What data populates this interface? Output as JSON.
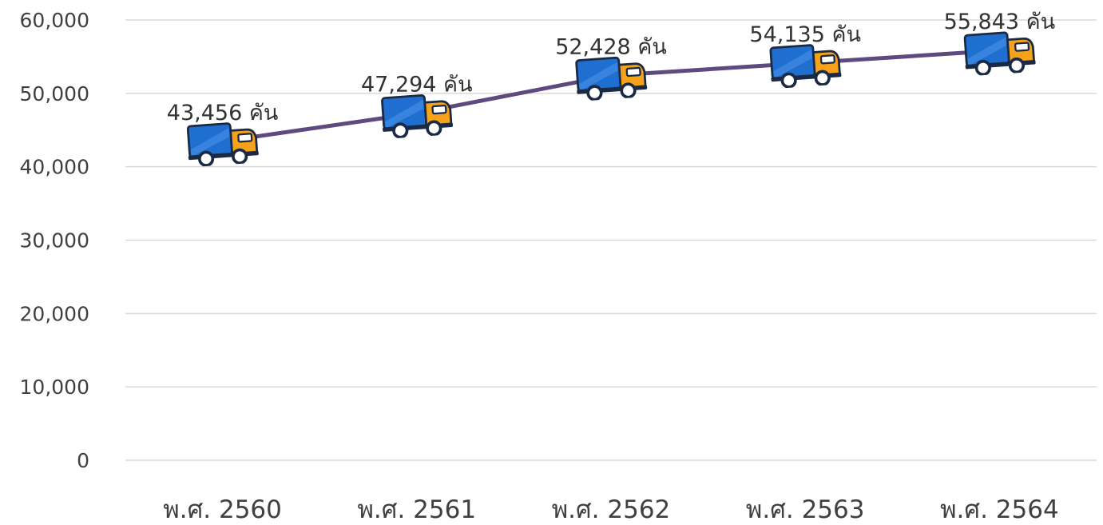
{
  "chart_data": {
    "type": "line",
    "title": "",
    "xlabel": "",
    "ylabel": "",
    "categories": [
      "พ.ศ. 2560",
      "พ.ศ. 2561",
      "พ.ศ. 2562",
      "พ.ศ. 2563",
      "พ.ศ. 2564"
    ],
    "series": [
      {
        "values": [
          43456,
          47294,
          52428,
          54135,
          55843
        ],
        "data_labels": [
          "43,456 คัน",
          "47,294 คัน",
          "52,428 คัน",
          "54,135 คัน",
          "55,843 คัน"
        ],
        "color": "#5e4a7e",
        "marker_icon": "truck-icon"
      }
    ],
    "ylim": [
      0,
      60000
    ],
    "yticks": [
      0,
      10000,
      20000,
      30000,
      40000,
      50000,
      60000
    ],
    "ytick_labels": [
      "0",
      "10,000",
      "20,000",
      "30,000",
      "40,000",
      "50,000",
      "60,000"
    ],
    "grid": true,
    "legend": "none",
    "colors": {
      "line": "#5e4a7e",
      "grid": "#d9d9d9",
      "truck_body": "#1f6fd1",
      "truck_cab": "#f6a21a"
    }
  }
}
